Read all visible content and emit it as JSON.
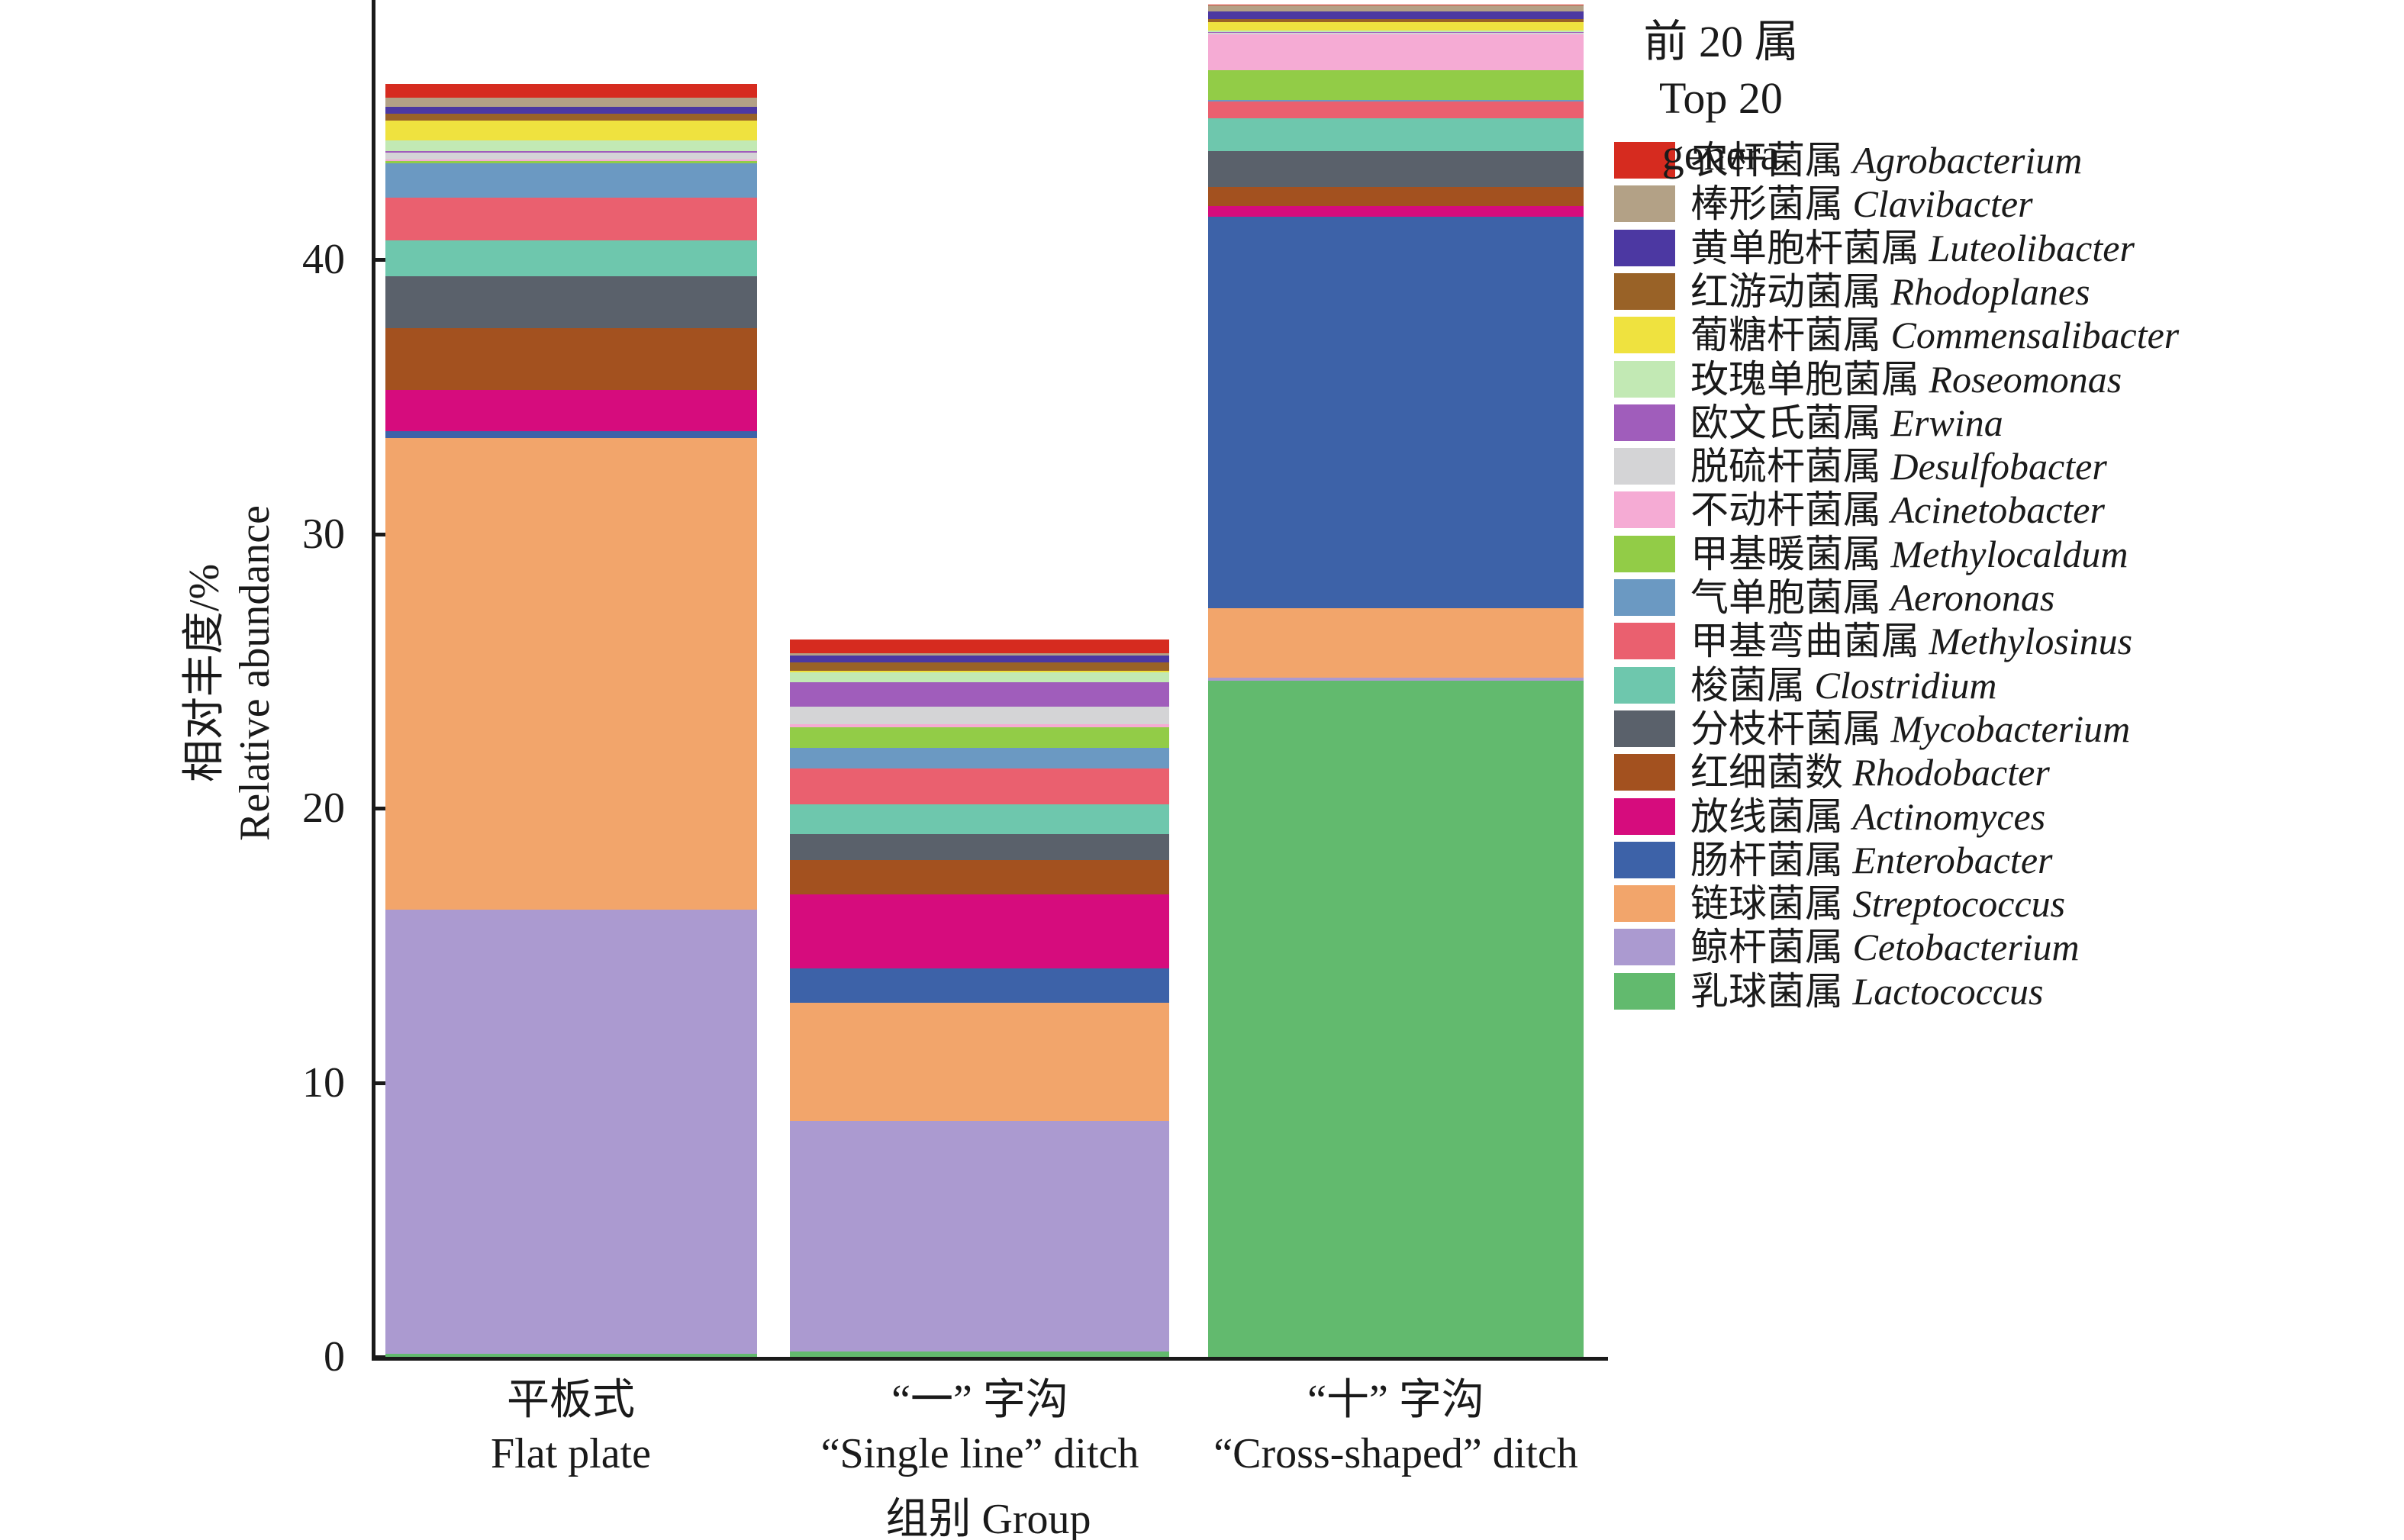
{
  "chart_data": {
    "type": "bar",
    "subtype": "stacked-vertical",
    "legend_title_zh": "前 20 属",
    "legend_title_en": "Top 20 genera",
    "ylabel_zh": "相对丰度/%",
    "ylabel_en": "Relative abundance",
    "xlabel": "组别 Group",
    "ylim": [
      0,
      49.6
    ],
    "yticks": [
      0,
      10,
      20,
      30,
      40
    ],
    "grid": false,
    "legend_position": "right",
    "categories": [
      {
        "zh": "平板式",
        "en": "Flat plate"
      },
      {
        "zh": "“一” 字沟",
        "en": "“Single line” ditch"
      },
      {
        "zh": "“十” 字沟",
        "en": "“Cross-shaped” ditch"
      }
    ],
    "series_note": "listed in legend order; first item is the top segment of each stacked bar; values are relative abundance % for [Flat plate, Single line ditch, Cross-shaped ditch]",
    "series": [
      {
        "zh": "农杆菌属",
        "latin": "Agrobacterium",
        "color": "#d62b1f",
        "values": [
          0.5,
          0.5,
          0.05
        ]
      },
      {
        "zh": "棒形菌属",
        "latin": "Clavibacter",
        "color": "#b3a186",
        "values": [
          0.35,
          0.1,
          0.2
        ]
      },
      {
        "zh": "黄单胞杆菌属",
        "latin": "Luteolibacter",
        "color": "#4c38a2",
        "values": [
          0.25,
          0.25,
          0.3
        ]
      },
      {
        "zh": "红游动菌属",
        "latin": "Rhodoplanes",
        "color": "#996227",
        "values": [
          0.25,
          0.3,
          0.1
        ]
      },
      {
        "zh": "葡糖杆菌属",
        "latin": "Commensalibacter",
        "color": "#efe23f",
        "values": [
          0.7,
          0.05,
          0.3
        ]
      },
      {
        "zh": "玫瑰单胞菌属",
        "latin": "Roseomonas",
        "color": "#c2e9b4",
        "values": [
          0.4,
          0.35,
          0.05
        ]
      },
      {
        "zh": "欧文氏菌属",
        "latin": "Erwina",
        "color": "#a05dbb",
        "values": [
          0.05,
          0.9,
          0.05
        ]
      },
      {
        "zh": "脱硫杆菌属",
        "latin": "Desulfobacter",
        "color": "#d4d4d6",
        "values": [
          0.25,
          0.65,
          0.05
        ]
      },
      {
        "zh": "不动杆菌属",
        "latin": "Acinetobacter",
        "color": "#f5abd4",
        "values": [
          0.05,
          0.1,
          1.3
        ]
      },
      {
        "zh": "甲基暖菌属",
        "latin": "Methylocaldum",
        "color": "#92cc47",
        "values": [
          0.1,
          0.75,
          1.1
        ]
      },
      {
        "zh": "气单胞菌属",
        "latin": "Aerononas",
        "color": "#6b99c2",
        "values": [
          1.25,
          0.75,
          0.05
        ]
      },
      {
        "zh": "甲基弯曲菌属",
        "latin": "Methylosinus",
        "color": "#ea606f",
        "values": [
          1.55,
          1.3,
          0.6
        ]
      },
      {
        "zh": "梭菌属",
        "latin": "Clostridium",
        "color": "#6ec7ad",
        "values": [
          1.3,
          1.1,
          1.2
        ]
      },
      {
        "zh": "分枝杆菌属",
        "latin": "Mycobacterium",
        "color": "#5a616b",
        "values": [
          1.9,
          0.95,
          1.3
        ]
      },
      {
        "zh": "红细菌数",
        "latin": "Rhodobacter",
        "color": "#a3511f",
        "values": [
          2.25,
          1.25,
          0.7
        ]
      },
      {
        "zh": "放线菌属",
        "latin": "Actinomyces",
        "color": "#d60c7d",
        "values": [
          1.5,
          2.7,
          0.4
        ]
      },
      {
        "zh": "肠杆菌属",
        "latin": "Enterobacter",
        "color": "#3d62a8",
        "values": [
          0.25,
          1.25,
          14.25
        ]
      },
      {
        "zh": "链球菌属",
        "latin": "Streptococcus",
        "color": "#f2a56b",
        "values": [
          17.2,
          4.3,
          2.55
        ]
      },
      {
        "zh": "鲸杆菌属",
        "latin": "Cetobacterium",
        "color": "#ab9ad0",
        "values": [
          16.2,
          8.4,
          0.1
        ]
      },
      {
        "zh": "乳球菌属",
        "latin": "Lactococcus",
        "color": "#62ba6e",
        "values": [
          0.1,
          0.2,
          24.65
        ]
      }
    ],
    "bar_totals": [
      46.4,
      26.15,
      49.3
    ]
  }
}
